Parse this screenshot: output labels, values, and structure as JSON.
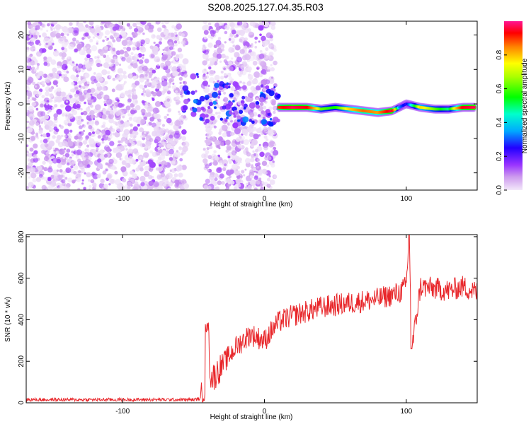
{
  "title": "S208.2025.127.04.35.R03",
  "chart_data": [
    {
      "type": "heatmap",
      "xlabel": "Height of straight line (km)",
      "ylabel": "Frequency (Hz)",
      "xlim": [
        -168,
        150
      ],
      "ylim": [
        -25,
        24
      ],
      "xticks": [
        -100,
        0,
        100
      ],
      "yticks": [
        -20,
        -10,
        0,
        10,
        20
      ],
      "colorbar": {
        "label": "Normalized spectral amplitude",
        "range": [
          0.0,
          1.0
        ],
        "ticks": [
          0.0,
          0.2,
          0.4,
          0.6,
          0.8
        ],
        "colors": [
          "#f0e4f8",
          "#cc99ee",
          "#9933ff",
          "#0000ff",
          "#00ffff",
          "#00ff00",
          "#ffff00",
          "#ff8000",
          "#ff0000",
          "#ff1493"
        ]
      },
      "ridge": {
        "x": [
          10,
          20,
          30,
          40,
          50,
          60,
          70,
          80,
          90,
          95,
          100,
          110,
          120,
          130,
          140,
          148
        ],
        "freq": [
          -1,
          -1,
          -1,
          -1.5,
          -1,
          -1.5,
          -2,
          -2.5,
          -2,
          -1,
          0,
          -1,
          -1.5,
          -1.5,
          -1,
          -1
        ],
        "amplitude": [
          0.85,
          0.95,
          0.9,
          0.6,
          0.55,
          0.7,
          0.8,
          0.75,
          0.95,
          0.4,
          0.3,
          0.7,
          0.6,
          0.5,
          0.9,
          0.95
        ]
      }
    },
    {
      "type": "line",
      "xlabel": "Height of straight line (km)",
      "ylabel": "SNR (10 * v/v)",
      "xlim": [
        -168,
        150
      ],
      "ylim": [
        0,
        810
      ],
      "xticks": [
        -100,
        0,
        100
      ],
      "yticks": [
        0,
        200,
        400,
        600,
        800
      ],
      "series": [
        {
          "color": "#e8262a",
          "x": [
            -168,
            -120,
            -80,
            -50,
            -45,
            -42,
            -40,
            -38,
            -35,
            -30,
            -20,
            -10,
            0,
            10,
            20,
            30,
            40,
            50,
            60,
            70,
            80,
            90,
            95,
            100,
            102,
            104,
            110,
            120,
            130,
            140,
            150
          ],
          "y": [
            15,
            15,
            15,
            15,
            20,
            80,
            390,
            120,
            130,
            180,
            270,
            330,
            300,
            390,
            420,
            440,
            460,
            470,
            480,
            490,
            500,
            520,
            530,
            560,
            810,
            260,
            560,
            550,
            540,
            560,
            530
          ]
        }
      ]
    }
  ]
}
